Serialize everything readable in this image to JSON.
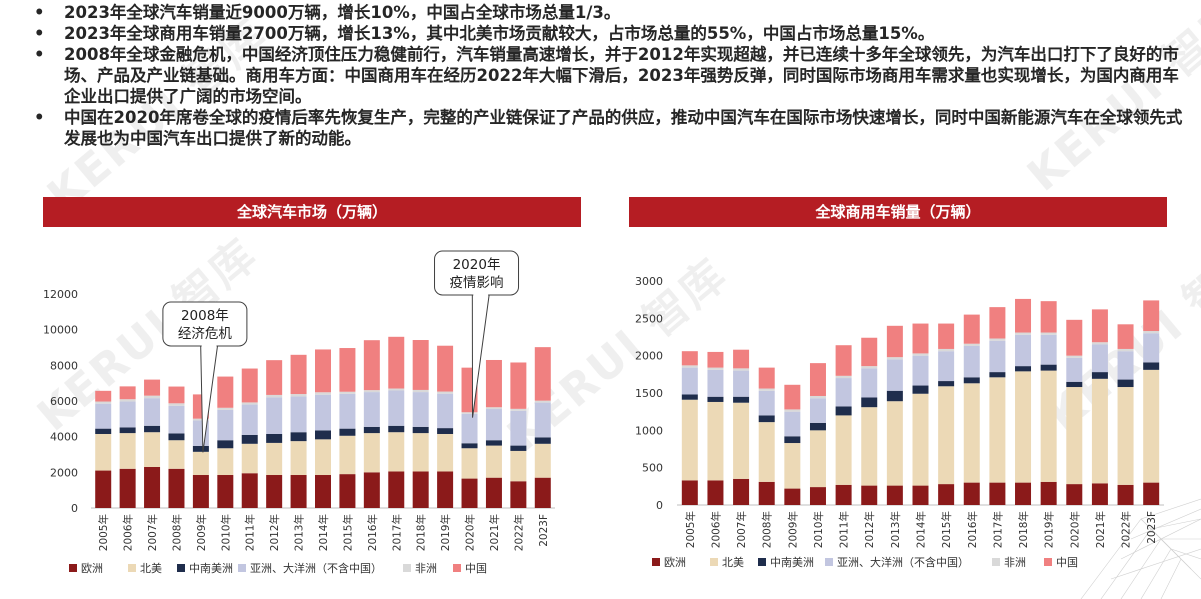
{
  "bullets": [
    "2023年全球汽车销量近9000万辆，增长10%，中国占全球市场总量1/3。",
    "2023年全球商用车销量2700万辆，增长13%，其中北美市场贡献较大，占市场总量的55%，中国占市场总量15%。",
    "2008年全球金融危机，中国经济顶住压力稳健前行，汽车销量高速增长，并于2012年实现超越，并已连续十多年全球领先，为汽车出口打下了良好的市场、产品及产业链基础。商用车方面：中国商用车在经历2022年大幅下滑后，2023年强势反弹，同时国际市场商用车需求量也实现增长，为国内商用车企业出口提供了广阔的市场空间。",
    "中国在2020年席卷全球的疫情后率先恢复生产，完整的产业链保证了产品的供应，推动中国汽车在国际市场快速增长，同时中国新能源汽车在全球领先式发展也为中国汽车出口提供了新的动能。"
  ],
  "bullet_symbol": "•",
  "watermark_text": "KERUI 智库",
  "chart_data": [
    {
      "type": "bar",
      "stacked": true,
      "title": "全球汽车市场（万辆）",
      "categories": [
        "2005年",
        "2006年",
        "2007年",
        "2008年",
        "2009年",
        "2010年",
        "2011年",
        "2012年",
        "2013年",
        "2014年",
        "2015年",
        "2016年",
        "2017年",
        "2018年",
        "2019年",
        "2020年",
        "2021年",
        "2022年",
        "2023F"
      ],
      "ylim": [
        0,
        12000
      ],
      "yticks": [
        0,
        2000,
        4000,
        6000,
        8000,
        10000,
        12000
      ],
      "grid": false,
      "legend_position": "bottom",
      "series": [
        {
          "name": "欧洲",
          "color": "#8b1a1a",
          "values": [
            2100,
            2200,
            2300,
            2200,
            1850,
            1850,
            1950,
            1850,
            1850,
            1850,
            1900,
            2000,
            2050,
            2050,
            2050,
            1650,
            1700,
            1500,
            1700
          ]
        },
        {
          "name": "北美",
          "color": "#ecd9b6",
          "values": [
            2050,
            2000,
            1950,
            1600,
            1300,
            1500,
            1650,
            1800,
            1900,
            2000,
            2150,
            2200,
            2200,
            2150,
            2100,
            1700,
            1800,
            1700,
            1900
          ]
        },
        {
          "name": "中南美洲",
          "color": "#1f2d4c",
          "values": [
            300,
            320,
            360,
            380,
            330,
            450,
            500,
            500,
            500,
            500,
            400,
            350,
            360,
            350,
            330,
            280,
            300,
            300,
            360
          ]
        },
        {
          "name": "亚洲、大洋洲（不含中国）",
          "color": "#c2c6e0",
          "values": [
            1400,
            1450,
            1550,
            1550,
            1430,
            1700,
            1700,
            2050,
            2000,
            2000,
            1950,
            1950,
            1980,
            1950,
            1930,
            1650,
            1750,
            1950,
            1950
          ]
        },
        {
          "name": "非洲",
          "color": "#d9d9d9",
          "values": [
            120,
            130,
            140,
            140,
            100,
            120,
            120,
            140,
            140,
            140,
            120,
            110,
            110,
            120,
            120,
            90,
            100,
            110,
            110
          ]
        },
        {
          "name": "中国",
          "color": "#f08080",
          "values": [
            600,
            720,
            900,
            940,
            1360,
            1750,
            1900,
            1950,
            2200,
            2400,
            2450,
            2800,
            2900,
            2800,
            2570,
            2500,
            2650,
            2600,
            3000
          ]
        }
      ],
      "annotations": [
        {
          "text": [
            "2008年",
            "经济危机"
          ],
          "category": "2009年"
        },
        {
          "text": [
            "2020年",
            "疫情影响"
          ],
          "category": "2020年"
        }
      ]
    },
    {
      "type": "bar",
      "stacked": true,
      "title": "全球商用车销量（万辆）",
      "categories": [
        "2005年",
        "2006年",
        "2007年",
        "2008年",
        "2009年",
        "2010年",
        "2011年",
        "2012年",
        "2013年",
        "2014年",
        "2015年",
        "2016年",
        "2017年",
        "2018年",
        "2019年",
        "2020年",
        "2021年",
        "2022年",
        "2023F"
      ],
      "ylim": [
        0,
        3000
      ],
      "yticks": [
        0,
        500,
        1000,
        1500,
        2000,
        2500,
        3000
      ],
      "grid": false,
      "legend_position": "bottom",
      "series": [
        {
          "name": "欧洲",
          "color": "#8b1a1a",
          "values": [
            330,
            330,
            350,
            310,
            220,
            240,
            270,
            260,
            260,
            260,
            280,
            300,
            300,
            300,
            310,
            280,
            290,
            270,
            300
          ]
        },
        {
          "name": "北美",
          "color": "#ecd9b6",
          "values": [
            1080,
            1050,
            1020,
            800,
            610,
            760,
            930,
            1050,
            1130,
            1230,
            1310,
            1330,
            1410,
            1490,
            1490,
            1300,
            1400,
            1310,
            1510
          ]
        },
        {
          "name": "中南美洲",
          "color": "#1f2d4c",
          "values": [
            70,
            70,
            80,
            90,
            90,
            100,
            120,
            130,
            140,
            110,
            70,
            80,
            70,
            70,
            80,
            70,
            90,
            100,
            100
          ]
        },
        {
          "name": "亚洲、大洋洲（不含中国）",
          "color": "#c2c6e0",
          "values": [
            360,
            360,
            350,
            330,
            330,
            330,
            380,
            390,
            420,
            400,
            400,
            420,
            420,
            420,
            400,
            320,
            370,
            380,
            390
          ]
        },
        {
          "name": "非洲",
          "color": "#d9d9d9",
          "values": [
            30,
            30,
            30,
            30,
            30,
            30,
            30,
            30,
            30,
            30,
            30,
            30,
            30,
            30,
            30,
            30,
            30,
            30,
            30
          ]
        },
        {
          "name": "中国",
          "color": "#f08080",
          "values": [
            190,
            210,
            250,
            280,
            330,
            440,
            410,
            380,
            420,
            400,
            340,
            390,
            420,
            450,
            420,
            480,
            440,
            330,
            410
          ]
        }
      ]
    }
  ]
}
